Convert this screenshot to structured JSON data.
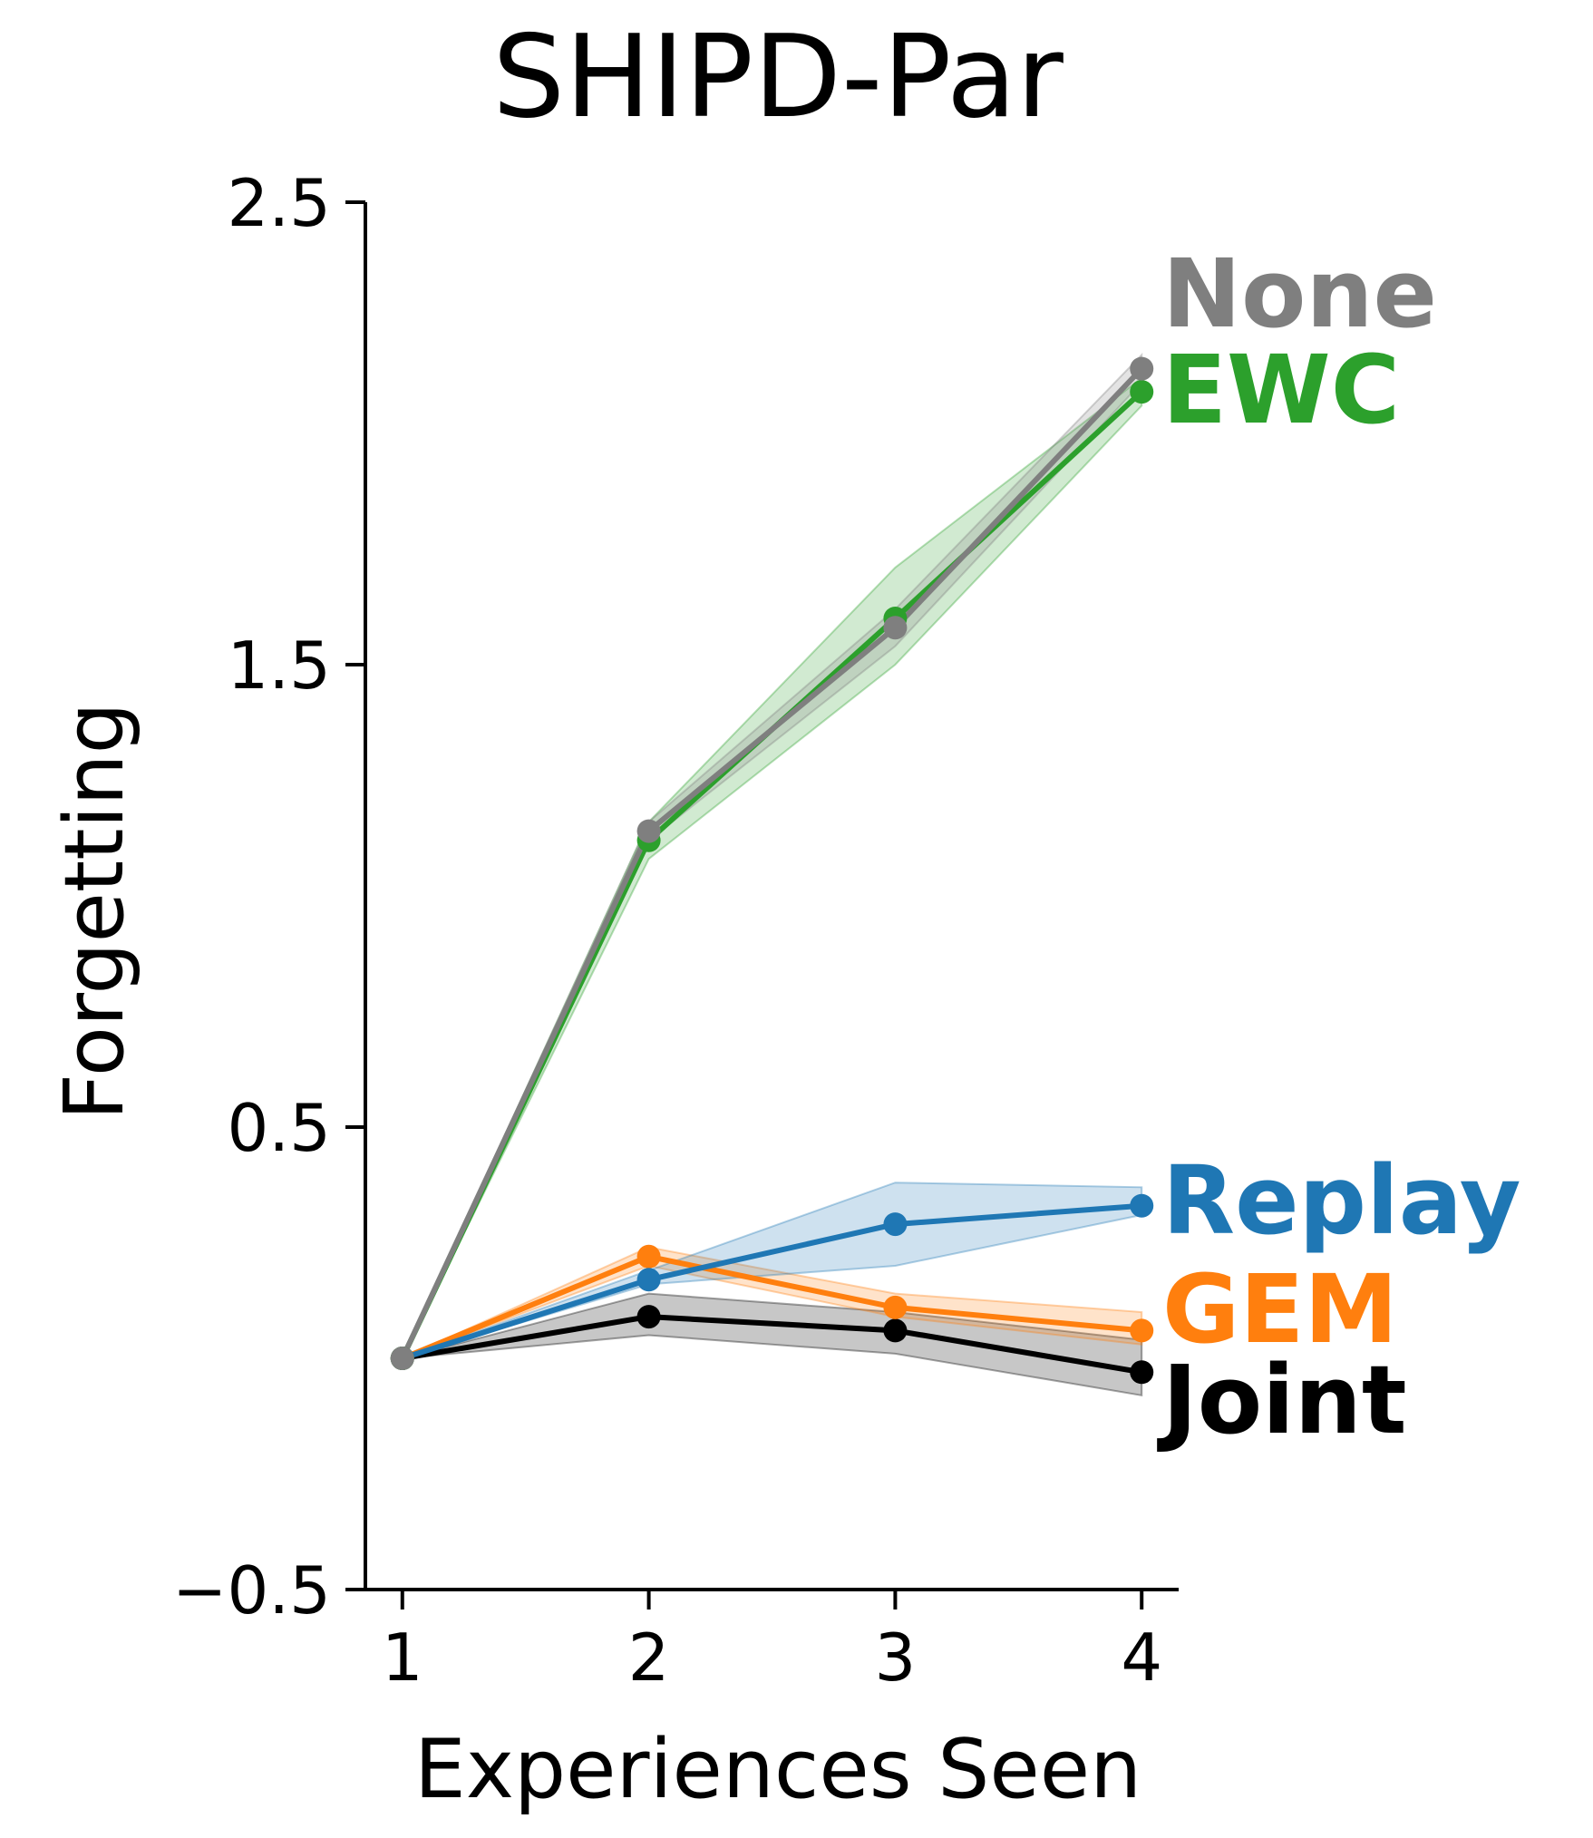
{
  "chart_data": {
    "type": "line",
    "title": "SHIPD-Par",
    "xlabel": "Experiences Seen",
    "ylabel": "Forgetting",
    "x": [
      1,
      2,
      3,
      4
    ],
    "xticks": [
      "1",
      "2",
      "3",
      "4"
    ],
    "yticks": [
      {
        "value": 2.5,
        "label": "2.5"
      },
      {
        "value": 1.5,
        "label": "1.5"
      },
      {
        "value": 0.5,
        "label": "0.5"
      },
      {
        "value": -0.5,
        "label": "−0.5"
      }
    ],
    "xlim": [
      0.85,
      4.15
    ],
    "ylim": [
      -0.5,
      2.5
    ],
    "grid": false,
    "legend": "inline-labels-right",
    "series": [
      {
        "name": "None",
        "color": "#7f7f7f",
        "values": [
          0.0,
          1.14,
          1.58,
          2.14
        ],
        "band_low": [
          0.0,
          1.12,
          1.54,
          2.11
        ],
        "band_high": [
          0.0,
          1.16,
          1.62,
          2.17
        ]
      },
      {
        "name": "EWC",
        "color": "#2ca02c",
        "values": [
          0.0,
          1.12,
          1.6,
          2.09
        ],
        "band_low": [
          0.0,
          1.08,
          1.5,
          2.06
        ],
        "band_high": [
          0.0,
          1.16,
          1.71,
          2.12
        ]
      },
      {
        "name": "Replay",
        "color": "#1f77b4",
        "values": [
          0.0,
          0.17,
          0.29,
          0.33
        ],
        "band_low": [
          0.0,
          0.16,
          0.2,
          0.31
        ],
        "band_high": [
          0.0,
          0.19,
          0.38,
          0.37
        ]
      },
      {
        "name": "GEM",
        "color": "#ff7f0e",
        "values": [
          0.0,
          0.22,
          0.11,
          0.06
        ],
        "band_low": [
          0.0,
          0.2,
          0.09,
          0.03
        ],
        "band_high": [
          0.0,
          0.24,
          0.14,
          0.1
        ]
      },
      {
        "name": "Joint",
        "color": "#000000",
        "values": [
          0.0,
          0.09,
          0.06,
          -0.03
        ],
        "band_low": [
          0.0,
          0.05,
          0.01,
          -0.08
        ],
        "band_high": [
          0.0,
          0.14,
          0.1,
          0.04
        ]
      }
    ]
  }
}
